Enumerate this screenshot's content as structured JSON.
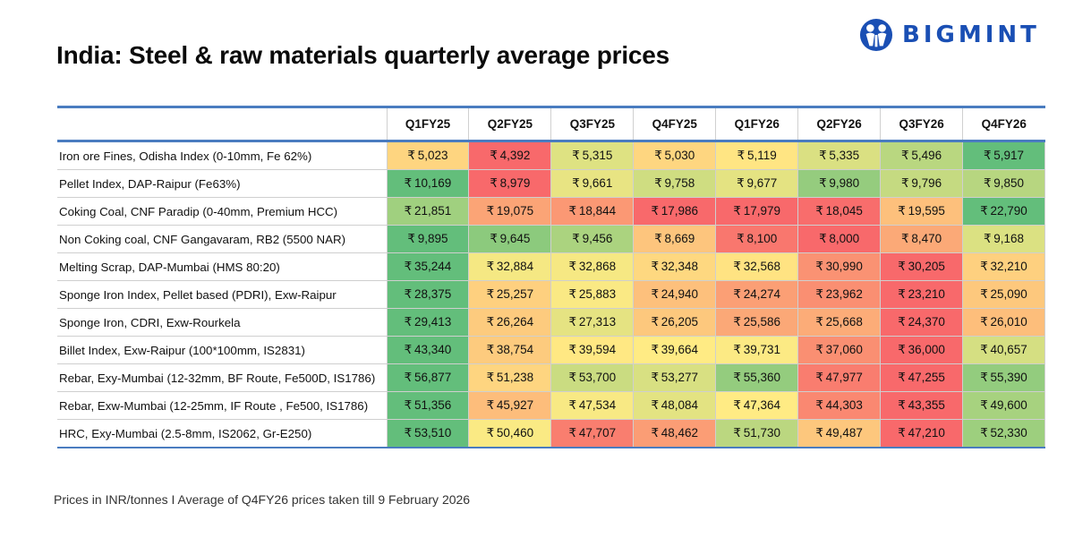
{
  "header": {
    "title": "India: Steel & raw materials quarterly average prices",
    "brand": "BIGMINT",
    "brand_color": "#1a4fb4"
  },
  "footer": {
    "note": "Prices in INR/tonnes  I  Average of Q4FY26 prices taken till 9 February 2026"
  },
  "chart_data": {
    "type": "heatmap",
    "title": "India: Steel & raw materials quarterly average prices",
    "currency_symbol": "₹",
    "unit": "INR/tonnes",
    "color_scale": {
      "low": "#f8696b",
      "mid": "#ffeb84",
      "high": "#63be7b",
      "scope": "per-row"
    },
    "columns": [
      "Q1FY25",
      "Q2FY25",
      "Q3FY25",
      "Q4FY25",
      "Q1FY26",
      "Q2FY26",
      "Q3FY26",
      "Q4FY26"
    ],
    "rows": [
      {
        "label": "Iron ore Fines, Odisha Index (0-10mm, Fe 62%)",
        "values": [
          5023,
          4392,
          5315,
          5030,
          5119,
          5335,
          5496,
          5917
        ]
      },
      {
        "label": "Pellet Index, DAP-Raipur (Fe63%)",
        "values": [
          10169,
          8979,
          9661,
          9758,
          9677,
          9980,
          9796,
          9850
        ]
      },
      {
        "label": "Coking Coal, CNF Paradip (0-40mm, Premium HCC)",
        "values": [
          21851,
          19075,
          18844,
          17986,
          17979,
          18045,
          19595,
          22790
        ]
      },
      {
        "label": "Non Coking coal, CNF Gangavaram, RB2 (5500 NAR)",
        "values": [
          9895,
          9645,
          9456,
          8669,
          8100,
          8000,
          8470,
          9168
        ]
      },
      {
        "label": "Melting Scrap, DAP-Mumbai (HMS 80:20)",
        "values": [
          35244,
          32884,
          32868,
          32348,
          32568,
          30990,
          30205,
          32210
        ]
      },
      {
        "label": "Sponge Iron Index, Pellet based (PDRI), Exw-Raipur",
        "values": [
          28375,
          25257,
          25883,
          24940,
          24274,
          23962,
          23210,
          25090
        ]
      },
      {
        "label": "Sponge Iron, CDRI, Exw-Rourkela",
        "values": [
          29413,
          26264,
          27313,
          26205,
          25586,
          25668,
          24370,
          26010
        ]
      },
      {
        "label": "Billet Index, Exw-Raipur (100*100mm, IS2831)",
        "values": [
          43340,
          38754,
          39594,
          39664,
          39731,
          37060,
          36000,
          40657
        ]
      },
      {
        "label": " Rebar, Exy-Mumbai (12-32mm, BF Route, Fe500D,  IS1786)",
        "values": [
          56877,
          51238,
          53700,
          53277,
          55360,
          47977,
          47255,
          55390
        ]
      },
      {
        "label": "Rebar, Exw-Mumbai (12-25mm, IF Route , Fe500, IS1786)",
        "values": [
          51356,
          45927,
          47534,
          48084,
          47364,
          44303,
          43355,
          49600
        ]
      },
      {
        "label": "HRC, Exy-Mumbai (2.5-8mm, IS2062, Gr-E250)",
        "values": [
          53510,
          50460,
          47707,
          48462,
          51730,
          49487,
          47210,
          52330
        ]
      }
    ]
  }
}
